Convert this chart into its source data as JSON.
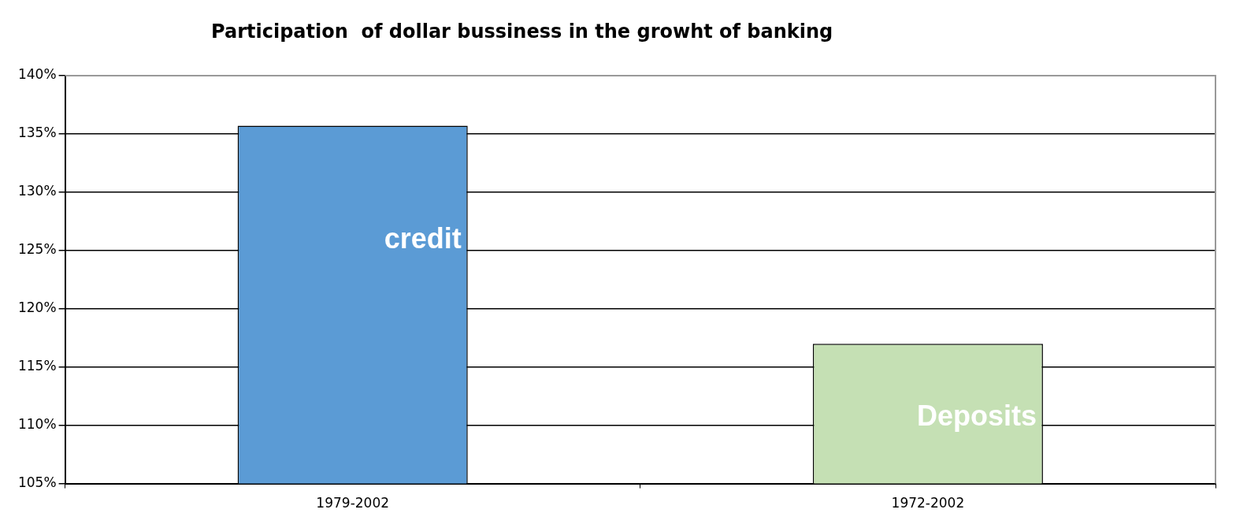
{
  "chart_data": {
    "type": "bar",
    "title": "Participation  of dollar bussiness in the growht of banking",
    "categories": [
      "1979-2002",
      "1972-2002"
    ],
    "values": [
      135.7,
      117.0
    ],
    "colors": [
      "#5b9bd5",
      "#c5e0b4"
    ],
    "ylim": [
      105,
      140
    ],
    "yticks": [
      {
        "value": 105,
        "label": "105%"
      },
      {
        "value": 110,
        "label": "110%"
      },
      {
        "value": 115,
        "label": "115%"
      },
      {
        "value": 120,
        "label": "120%"
      },
      {
        "value": 125,
        "label": "125%"
      },
      {
        "value": 130,
        "label": "130%"
      },
      {
        "value": 135,
        "label": "135%"
      },
      {
        "value": 140,
        "label": "140%"
      }
    ],
    "grid": "y",
    "annotations": [
      "credit",
      "Deposits"
    ]
  }
}
